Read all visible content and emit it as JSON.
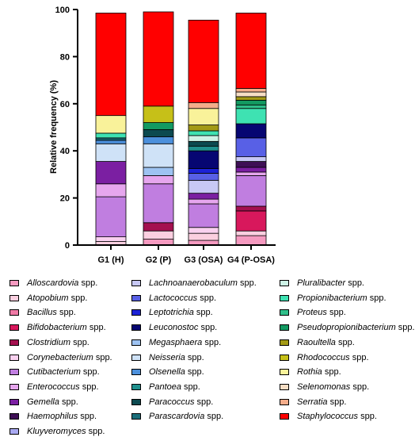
{
  "chart_data": {
    "type": "bar",
    "stacked": true,
    "categories": [
      "G1 (H)",
      "G2 (P)",
      "G3 (OSA)",
      "G4 (P-OSA)"
    ],
    "ylabel": "Relative frequency (%)",
    "xlabel": "",
    "ylim": [
      0,
      100
    ],
    "yticks": [
      "0",
      "20",
      "40",
      "60",
      "80",
      "100"
    ],
    "grid": false,
    "legend_position": "bottom",
    "series": [
      {
        "name": "Alloscardovia",
        "suffix": " spp.",
        "color": "#f59ac0",
        "values": [
          0,
          2.5,
          2,
          4
        ]
      },
      {
        "name": "Atopobium",
        "suffix": " spp.",
        "color": "#fbcfe0",
        "values": [
          1.5,
          3.5,
          3,
          2
        ]
      },
      {
        "name": "Bacillus",
        "suffix": " spp.",
        "color": "#f07aa6",
        "values": [
          0,
          0,
          0,
          0
        ]
      },
      {
        "name": "Bifidobacterium",
        "suffix": " spp.",
        "color": "#d8185c",
        "values": [
          0,
          0,
          0,
          8.5
        ]
      },
      {
        "name": "Clostridium",
        "suffix": " spp.",
        "color": "#a4104f",
        "values": [
          0,
          3.5,
          0,
          2
        ]
      },
      {
        "name": "Corynebacterium",
        "suffix": " spp.",
        "color": "#f9d1ef",
        "values": [
          2,
          0,
          2.5,
          0
        ]
      },
      {
        "name": "Cutibacterium",
        "suffix": " spp.",
        "color": "#c07ee0",
        "values": [
          17,
          16.5,
          10,
          13
        ]
      },
      {
        "name": "Enterococcus",
        "suffix": " spp.",
        "color": "#e6a6ee",
        "values": [
          5.5,
          3.5,
          2,
          1.5
        ]
      },
      {
        "name": "Gemella",
        "suffix": " spp.",
        "color": "#7b1fa2",
        "values": [
          9.5,
          0,
          2.5,
          2
        ]
      },
      {
        "name": "Haemophilus",
        "suffix": " spp.",
        "color": "#3e0f55",
        "values": [
          0,
          0,
          0,
          2.5
        ]
      },
      {
        "name": "Kluyveromyces",
        "suffix": " spp.",
        "color": "#a9a9f2",
        "values": [
          0,
          0,
          0,
          0
        ]
      },
      {
        "name": "Lachnoanaerobaculum",
        "suffix": " spp.",
        "color": "#c7c8f5",
        "values": [
          0,
          0,
          5.5,
          2
        ]
      },
      {
        "name": "Lactococcus",
        "suffix": " spp.",
        "color": "#5860e6",
        "values": [
          0,
          0,
          3,
          8
        ]
      },
      {
        "name": "Leptotrichia",
        "suffix": " spp.",
        "color": "#1c22d6",
        "values": [
          0,
          0,
          2,
          0
        ]
      },
      {
        "name": "Leuconostoc",
        "suffix": " spp.",
        "color": "#060672",
        "values": [
          0,
          0,
          7.5,
          6
        ]
      },
      {
        "name": "Megasphaera",
        "suffix": " spp.",
        "color": "#9ec3f2",
        "values": [
          0,
          3.5,
          0,
          0
        ]
      },
      {
        "name": "Neisseria",
        "suffix": " spp.",
        "color": "#cfe2f7",
        "values": [
          7.5,
          10,
          0,
          0
        ]
      },
      {
        "name": "Olsenella",
        "suffix": " spp.",
        "color": "#4c90dc",
        "values": [
          1.5,
          3,
          0,
          0
        ]
      },
      {
        "name": "Pantoea",
        "suffix": " spp.",
        "color": "#20918e",
        "values": [
          0,
          0,
          2,
          0
        ]
      },
      {
        "name": "Paracoccus",
        "suffix": " spp.",
        "color": "#0c4a50",
        "values": [
          0,
          3,
          2,
          0
        ]
      },
      {
        "name": "Parascardovia",
        "suffix": " spp.",
        "color": "#1a6e7a",
        "values": [
          1,
          0,
          0,
          0
        ]
      },
      {
        "name": "Pluralibacter",
        "suffix": " spp.",
        "color": "#cdf2e6",
        "values": [
          0,
          0,
          2.5,
          0
        ]
      },
      {
        "name": "Propionibacterium",
        "suffix": " spp.",
        "color": "#3ee2b2",
        "values": [
          2,
          0,
          2,
          6.5
        ]
      },
      {
        "name": "Proteus",
        "suffix": " spp.",
        "color": "#2fbf8a",
        "values": [
          0,
          0,
          0,
          1.5
        ]
      },
      {
        "name": "Pseudopropionibacterium",
        "suffix": " spp.",
        "color": "#139a62",
        "values": [
          0,
          3,
          0,
          2
        ]
      },
      {
        "name": "Raoultella",
        "suffix": " spp.",
        "color": "#a39a15",
        "values": [
          0,
          0,
          2.5,
          1.5
        ]
      },
      {
        "name": "Rhodococcus",
        "suffix": " spp.",
        "color": "#c6c018",
        "values": [
          0,
          7,
          0,
          0
        ]
      },
      {
        "name": "Rothia",
        "suffix": " spp.",
        "color": "#f9f29a",
        "values": [
          7.5,
          0,
          7,
          0
        ]
      },
      {
        "name": "Selenomonas",
        "suffix": " spp.",
        "color": "#f6ddc4",
        "values": [
          0,
          0,
          0,
          2
        ]
      },
      {
        "name": "Serratia",
        "suffix": " spp.",
        "color": "#f4ac8a",
        "values": [
          0,
          0,
          2.5,
          1.5
        ]
      },
      {
        "name": "Staphylococcus",
        "suffix": " spp.",
        "color": "#ff0000",
        "values": [
          43.5,
          40,
          35,
          32
        ]
      }
    ]
  }
}
